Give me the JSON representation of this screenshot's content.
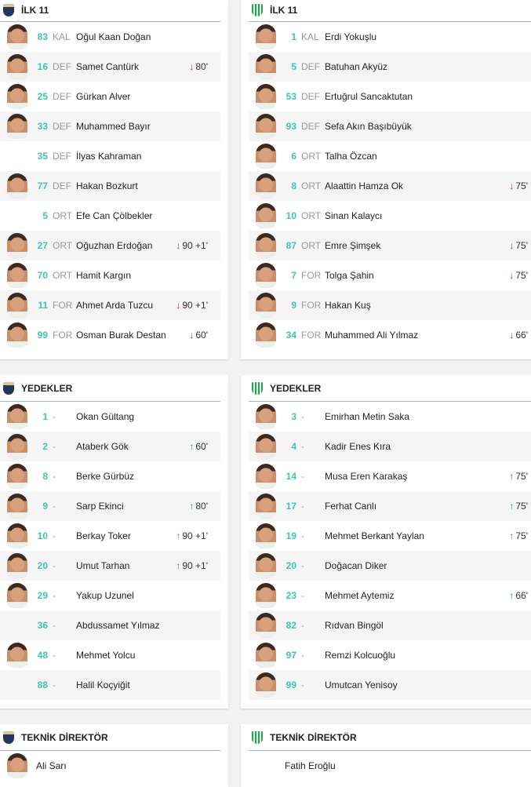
{
  "colors": {
    "number": "#3cc7b0",
    "sub_out": "#e0201c",
    "sub_in": "#2a9d3e"
  },
  "home": {
    "starting": {
      "title": "İLK 11",
      "players": [
        {
          "num": "83",
          "pos": "KAL",
          "name": "Oğul Kaan Doğan",
          "photo": true
        },
        {
          "num": "16",
          "pos": "DEF",
          "name": "Samet Cantürk",
          "photo": true,
          "sub": {
            "dir": "out",
            "time": "80'"
          }
        },
        {
          "num": "25",
          "pos": "DEF",
          "name": "Gürkan Alver",
          "photo": true
        },
        {
          "num": "33",
          "pos": "DEF",
          "name": "Muhammed Bayır",
          "photo": true
        },
        {
          "num": "35",
          "pos": "DEF",
          "name": "İlyas Kahraman",
          "photo": false
        },
        {
          "num": "77",
          "pos": "DEF",
          "name": "Hakan Bozkurt",
          "photo": true
        },
        {
          "num": "5",
          "pos": "ORT",
          "name": "Efe Can Çölbekler",
          "photo": false
        },
        {
          "num": "27",
          "pos": "ORT",
          "name": "Oğuzhan Erdoğan",
          "photo": true,
          "sub": {
            "dir": "out",
            "time": "90 +1'"
          }
        },
        {
          "num": "70",
          "pos": "ORT",
          "name": "Hamit Kargın",
          "photo": true
        },
        {
          "num": "11",
          "pos": "FOR",
          "name": "Ahmet Arda Tuzcu",
          "photo": true,
          "sub": {
            "dir": "out",
            "time": "90 +1'"
          }
        },
        {
          "num": "99",
          "pos": "FOR",
          "name": "Osman Burak Destan",
          "photo": true,
          "sub": {
            "dir": "out",
            "time": "60'"
          }
        }
      ]
    },
    "subs": {
      "title": "YEDEKLER",
      "players": [
        {
          "num": "1",
          "pos": "-",
          "name": "Okan Gültang",
          "photo": true
        },
        {
          "num": "2",
          "pos": "-",
          "name": "Ataberk Gök",
          "photo": true,
          "sub": {
            "dir": "in",
            "time": "60'"
          }
        },
        {
          "num": "8",
          "pos": "-",
          "name": "Berke Gürbüz",
          "photo": true
        },
        {
          "num": "9",
          "pos": "-",
          "name": "Sarp Ekinci",
          "photo": true,
          "sub": {
            "dir": "in",
            "time": "80'"
          }
        },
        {
          "num": "10",
          "pos": "-",
          "name": "Berkay Toker",
          "photo": true,
          "sub": {
            "dir": "in",
            "time": "90 +1'"
          }
        },
        {
          "num": "20",
          "pos": "-",
          "name": "Umut Tarhan",
          "photo": true,
          "sub": {
            "dir": "in",
            "time": "90 +1'"
          }
        },
        {
          "num": "29",
          "pos": "-",
          "name": "Yakup Uzunel",
          "photo": true
        },
        {
          "num": "36",
          "pos": "-",
          "name": "Abdussamet Yılmaz",
          "photo": false
        },
        {
          "num": "48",
          "pos": "-",
          "name": "Mehmet Yolcu",
          "photo": true
        },
        {
          "num": "88",
          "pos": "-",
          "name": "Halil Koçyiğit",
          "photo": false
        }
      ]
    },
    "coach": {
      "title": "TEKNİK DİREKTÖR",
      "name": "Ali Sarı",
      "photo": true
    }
  },
  "away": {
    "starting": {
      "title": "İLK 11",
      "players": [
        {
          "num": "1",
          "pos": "KAL",
          "name": "Erdi Yokuşlu",
          "photo": true
        },
        {
          "num": "5",
          "pos": "DEF",
          "name": "Batuhan Akyüz",
          "photo": true
        },
        {
          "num": "53",
          "pos": "DEF",
          "name": "Ertuğrul Sancaktutan",
          "photo": true
        },
        {
          "num": "93",
          "pos": "DEF",
          "name": "Sefa Akın Başıbüyük",
          "photo": true
        },
        {
          "num": "6",
          "pos": "ORT",
          "name": "Talha Özcan",
          "photo": true
        },
        {
          "num": "8",
          "pos": "ORT",
          "name": "Alaattin Hamza Ok",
          "photo": true,
          "sub": {
            "dir": "out",
            "time": "75'"
          }
        },
        {
          "num": "10",
          "pos": "ORT",
          "name": "Sinan Kalaycı",
          "photo": true
        },
        {
          "num": "87",
          "pos": "ORT",
          "name": "Emre Şimşek",
          "photo": true,
          "sub": {
            "dir": "out",
            "time": "75'"
          }
        },
        {
          "num": "7",
          "pos": "FOR",
          "name": "Tolga Şahin",
          "photo": true,
          "sub": {
            "dir": "out",
            "time": "75'"
          }
        },
        {
          "num": "9",
          "pos": "FOR",
          "name": "Hakan Kuş",
          "photo": true
        },
        {
          "num": "34",
          "pos": "FOR",
          "name": "Muhammed Ali Yılmaz",
          "photo": true,
          "sub": {
            "dir": "out",
            "time": "66'"
          }
        }
      ]
    },
    "subs": {
      "title": "YEDEKLER",
      "players": [
        {
          "num": "3",
          "pos": "-",
          "name": "Emirhan Metin Saka",
          "photo": true
        },
        {
          "num": "4",
          "pos": "-",
          "name": "Kadir Enes Kıra",
          "photo": true
        },
        {
          "num": "14",
          "pos": "-",
          "name": "Musa Eren Karakaş",
          "photo": true,
          "sub": {
            "dir": "in",
            "time": "75'"
          }
        },
        {
          "num": "17",
          "pos": "-",
          "name": "Ferhat Canlı",
          "photo": true,
          "sub": {
            "dir": "in",
            "time": "75'"
          }
        },
        {
          "num": "19",
          "pos": "-",
          "name": "Mehmet Berkant Yaylan",
          "photo": true,
          "sub": {
            "dir": "in",
            "time": "75'"
          }
        },
        {
          "num": "20",
          "pos": "-",
          "name": "Doğacan Diker",
          "photo": true
        },
        {
          "num": "23",
          "pos": "-",
          "name": "Mehmet Aytemiz",
          "photo": true,
          "sub": {
            "dir": "in",
            "time": "66'"
          }
        },
        {
          "num": "82",
          "pos": "-",
          "name": "Rıdvan Bingöl",
          "photo": true
        },
        {
          "num": "97",
          "pos": "-",
          "name": "Remzi Kolcuoğlu",
          "photo": true
        },
        {
          "num": "99",
          "pos": "-",
          "name": "Umutcan Yenisoy",
          "photo": true
        }
      ]
    },
    "coach": {
      "title": "TEKNİK DİREKTÖR",
      "name": "Fatih Eroğlu",
      "photo": false
    }
  }
}
